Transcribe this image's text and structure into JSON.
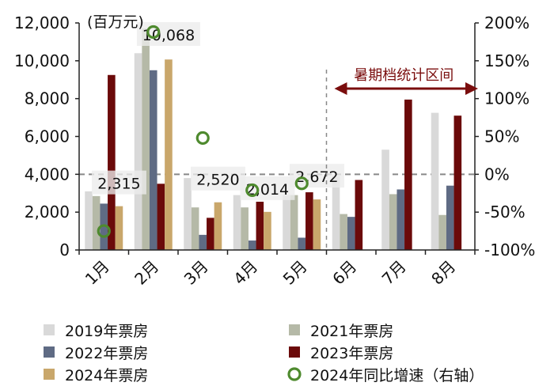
{
  "chart_data": {
    "type": "bar",
    "unit_label": "(百万元)",
    "categories": [
      "1月",
      "2月",
      "3月",
      "4月",
      "5月",
      "6月",
      "7月",
      "8月"
    ],
    "ylim_left": [
      0,
      12000
    ],
    "yticks_left": [
      "0",
      "2,000",
      "4,000",
      "6,000",
      "8,000",
      "10,000",
      "12,000"
    ],
    "ylim_right": [
      -100,
      200
    ],
    "yticks_right": [
      "-100%",
      "-50%",
      "0%",
      "50%",
      "100%",
      "150%",
      "200%"
    ],
    "series": [
      {
        "name": "2019年票房",
        "color": "#d9d9d9",
        "values": [
          3100,
          10400,
          3800,
          2900,
          2900,
          3900,
          5300,
          7250
        ]
      },
      {
        "name": "2021年票房",
        "color": "#b5b9a7",
        "values": [
          2850,
          11700,
          2250,
          2250,
          2900,
          1900,
          2950,
          1850
        ]
      },
      {
        "name": "2022年票房",
        "color": "#5f6b84",
        "values": [
          2450,
          9500,
          800,
          500,
          650,
          1750,
          3200,
          3400
        ]
      },
      {
        "name": "2023年票房",
        "color": "#6b0a0a",
        "values": [
          9250,
          3500,
          1700,
          2550,
          3050,
          3700,
          7950,
          7100
        ]
      },
      {
        "name": "2024年票房",
        "color": "#c9a76b",
        "values": [
          2315,
          10068,
          2520,
          2014,
          2672,
          null,
          null,
          null
        ]
      }
    ],
    "growth": {
      "name": "2024年同比增速（右轴）",
      "color": "#4e8a2e",
      "values": [
        -75,
        188,
        48,
        -21,
        -12,
        null,
        null,
        null
      ]
    },
    "data_labels": [
      "2,315",
      "10,068",
      "2,520",
      "2,014",
      "2,672"
    ],
    "annotation": "暑期档统计区间",
    "legend_position": "bottom"
  }
}
